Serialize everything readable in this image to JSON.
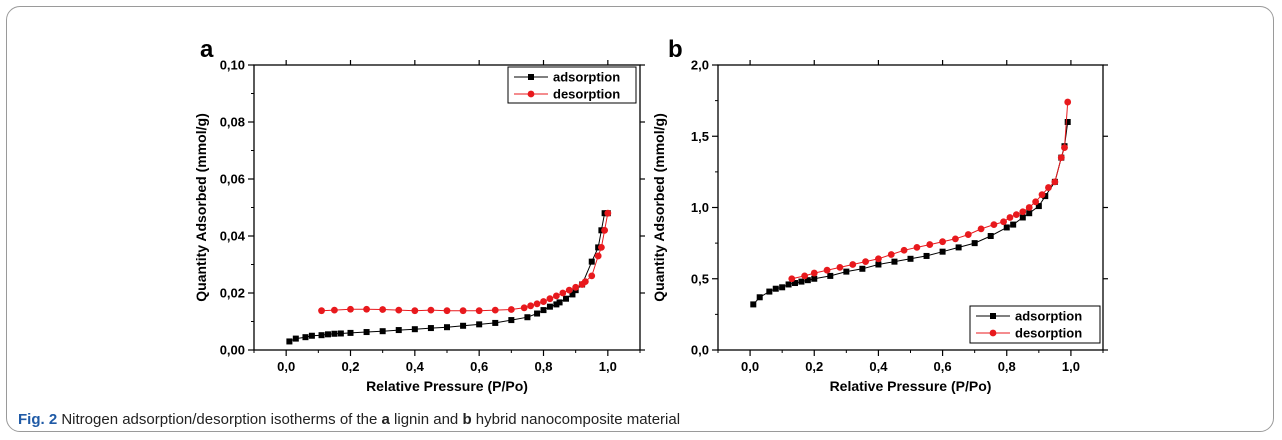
{
  "caption": {
    "label": "Fig. 2",
    "text_1": " Nitrogen adsorption/desorption isotherms of the ",
    "panel_a": "a",
    "text_2": " lignin and ",
    "panel_b": "b",
    "text_3": " hybrid nanocomposite material"
  },
  "chart_data": [
    {
      "panel": "a",
      "type": "line",
      "xlabel": "Relative Pressure (P/Po)",
      "ylabel": "Quantity Adsorbed (mmol/g)",
      "xlim": [
        -0.1,
        1.1
      ],
      "ylim": [
        0,
        0.1
      ],
      "xticks": [
        "0,0",
        "0,2",
        "0,4",
        "0,6",
        "0,8",
        "1,0"
      ],
      "xtick_values": [
        0,
        0.2,
        0.4,
        0.6,
        0.8,
        1.0
      ],
      "yticks": [
        "0,00",
        "0,02",
        "0,04",
        "0,06",
        "0,08",
        "0,10"
      ],
      "ytick_values": [
        0,
        0.02,
        0.04,
        0.06,
        0.08,
        0.1
      ],
      "legend_position": "top-right",
      "series": [
        {
          "name": "adsorption",
          "color": "#000000",
          "marker": "square",
          "x": [
            0.01,
            0.03,
            0.06,
            0.08,
            0.11,
            0.13,
            0.15,
            0.17,
            0.2,
            0.25,
            0.3,
            0.35,
            0.4,
            0.45,
            0.5,
            0.55,
            0.6,
            0.65,
            0.7,
            0.75,
            0.78,
            0.8,
            0.82,
            0.84,
            0.85,
            0.87,
            0.89,
            0.9,
            0.92,
            0.95,
            0.97,
            0.98,
            0.99,
            1.0
          ],
          "y": [
            0.003,
            0.004,
            0.0045,
            0.005,
            0.0052,
            0.0055,
            0.0057,
            0.0058,
            0.006,
            0.0063,
            0.0066,
            0.007,
            0.0073,
            0.0077,
            0.008,
            0.0085,
            0.009,
            0.0095,
            0.0105,
            0.0115,
            0.0128,
            0.014,
            0.0152,
            0.016,
            0.0167,
            0.018,
            0.0195,
            0.021,
            0.023,
            0.031,
            0.036,
            0.042,
            0.048,
            0.048
          ]
        },
        {
          "name": "desorption",
          "color": "#e8191d",
          "marker": "circle",
          "x": [
            1.0,
            0.99,
            0.98,
            0.97,
            0.95,
            0.93,
            0.92,
            0.9,
            0.88,
            0.86,
            0.84,
            0.82,
            0.8,
            0.78,
            0.76,
            0.74,
            0.7,
            0.65,
            0.6,
            0.55,
            0.5,
            0.45,
            0.4,
            0.35,
            0.3,
            0.25,
            0.2,
            0.15,
            0.11
          ],
          "y": [
            0.048,
            0.042,
            0.036,
            0.033,
            0.026,
            0.024,
            0.023,
            0.022,
            0.021,
            0.02,
            0.019,
            0.018,
            0.017,
            0.0162,
            0.0155,
            0.0148,
            0.0142,
            0.014,
            0.0138,
            0.0138,
            0.0138,
            0.014,
            0.0138,
            0.014,
            0.0142,
            0.0143,
            0.0143,
            0.014,
            0.0138
          ]
        }
      ]
    },
    {
      "panel": "b",
      "type": "line",
      "xlabel": "Relative Pressure (P/Po)",
      "ylabel": "Quantity Adsorbed (mmol/g)",
      "xlim": [
        -0.1,
        1.1
      ],
      "ylim": [
        0,
        2.0
      ],
      "xticks": [
        "0,0",
        "0,2",
        "0,4",
        "0,6",
        "0,8",
        "1,0"
      ],
      "xtick_values": [
        0,
        0.2,
        0.4,
        0.6,
        0.8,
        1.0
      ],
      "yticks": [
        "0,0",
        "0,5",
        "1,0",
        "1,5",
        "2,0"
      ],
      "ytick_values": [
        0,
        0.5,
        1.0,
        1.5,
        2.0
      ],
      "legend_position": "bottom-right",
      "series": [
        {
          "name": "adsorption",
          "color": "#000000",
          "marker": "square",
          "x": [
            0.01,
            0.03,
            0.06,
            0.08,
            0.1,
            0.12,
            0.14,
            0.16,
            0.18,
            0.2,
            0.25,
            0.3,
            0.35,
            0.4,
            0.45,
            0.5,
            0.55,
            0.6,
            0.65,
            0.7,
            0.75,
            0.8,
            0.82,
            0.85,
            0.87,
            0.9,
            0.92,
            0.95,
            0.97,
            0.98,
            0.99
          ],
          "y": [
            0.32,
            0.37,
            0.41,
            0.43,
            0.44,
            0.46,
            0.47,
            0.48,
            0.49,
            0.5,
            0.52,
            0.55,
            0.57,
            0.6,
            0.62,
            0.64,
            0.66,
            0.69,
            0.72,
            0.75,
            0.8,
            0.86,
            0.88,
            0.93,
            0.96,
            1.01,
            1.08,
            1.18,
            1.35,
            1.43,
            1.6
          ]
        },
        {
          "name": "desorption",
          "color": "#e8191d",
          "marker": "circle",
          "x": [
            0.99,
            0.98,
            0.97,
            0.95,
            0.93,
            0.91,
            0.89,
            0.87,
            0.85,
            0.83,
            0.81,
            0.79,
            0.76,
            0.72,
            0.68,
            0.64,
            0.6,
            0.56,
            0.52,
            0.48,
            0.44,
            0.4,
            0.36,
            0.32,
            0.28,
            0.24,
            0.2,
            0.17,
            0.13
          ],
          "y": [
            1.74,
            1.42,
            1.35,
            1.18,
            1.14,
            1.09,
            1.04,
            1.0,
            0.97,
            0.95,
            0.93,
            0.9,
            0.88,
            0.85,
            0.81,
            0.78,
            0.76,
            0.74,
            0.72,
            0.7,
            0.67,
            0.64,
            0.62,
            0.6,
            0.58,
            0.56,
            0.54,
            0.52,
            0.5
          ]
        }
      ]
    }
  ]
}
